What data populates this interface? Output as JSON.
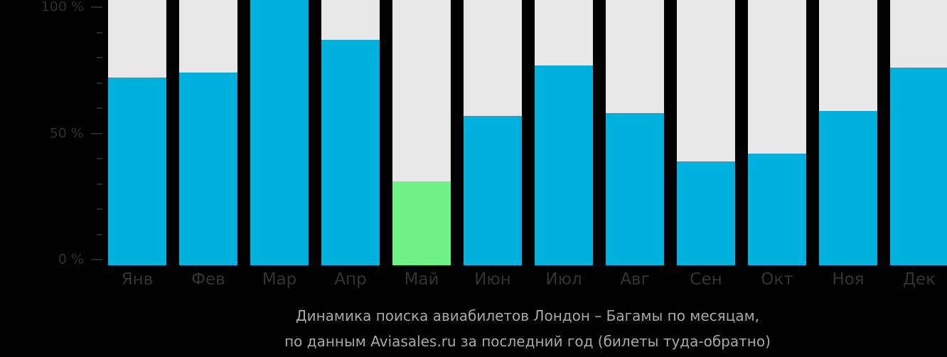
{
  "chart_data": {
    "type": "bar",
    "stacked_percent": true,
    "title": "Динамика поиска авиабилетов Лондон – Багамы по месяцам,",
    "subtitle": "по данным Aviasales.ru за последний год (билеты туда-обратно)",
    "xlabel": "",
    "ylabel": "",
    "ylim": [
      0,
      100
    ],
    "y_ticks": [
      "0 %",
      "50 %",
      "100 %"
    ],
    "grid": false,
    "legend": null,
    "categories": [
      "Янв",
      "Фев",
      "Мар",
      "Апр",
      "Май",
      "Июн",
      "Июл",
      "Авг",
      "Сен",
      "Окт",
      "Ноя",
      "Дек"
    ],
    "values": [
      72,
      74,
      100,
      87,
      31,
      57,
      77,
      58,
      39,
      42,
      59,
      76
    ],
    "highlight_index": 4,
    "colors": {
      "bar": "#00b0dd",
      "highlight": "#6ef286",
      "background_bar": "#e8e8e8"
    }
  }
}
